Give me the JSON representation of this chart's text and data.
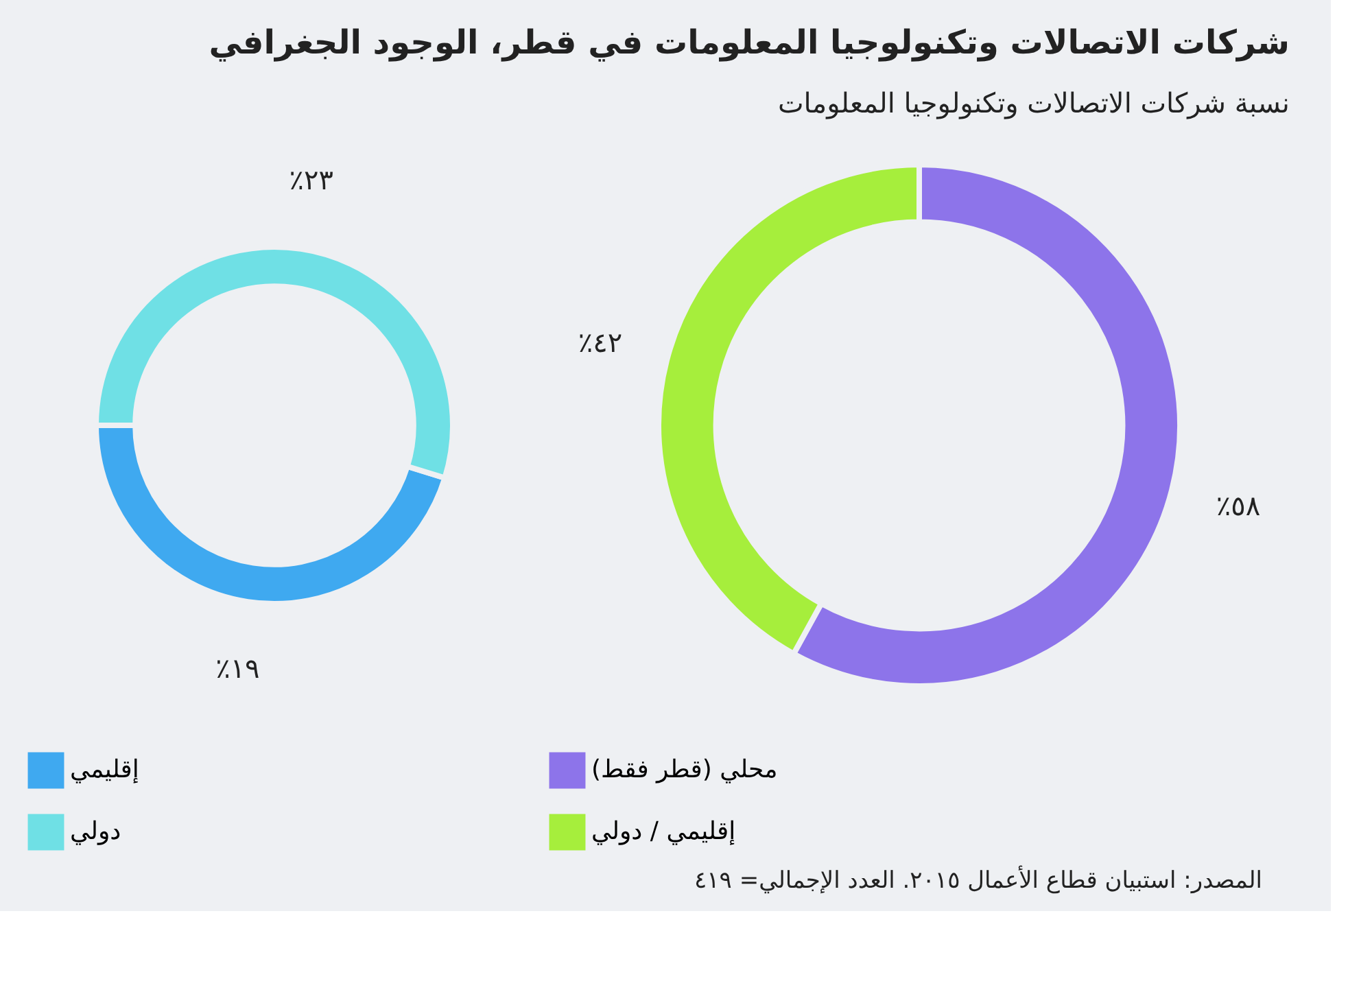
{
  "chart_data": [
    {
      "type": "donut",
      "categories": [
        "إقليمي",
        "دولي"
      ],
      "values": [
        19,
        23
      ],
      "colors": [
        "#3fa9f0",
        "#6fe0e5"
      ],
      "value_labels": [
        "٪١٩",
        "٪٢٣"
      ],
      "legend": "bottom"
    },
    {
      "type": "donut",
      "title": "شركات الاتصالات وتكنولوجيا المعلومات في قطر، الوجود الجغرافي",
      "subtitle": "نسبة شركات الاتصالات وتكنولوجيا المعلومات",
      "categories": [
        "محلي (قطر فقط)",
        "إقليمي / دولي"
      ],
      "values": [
        58,
        42
      ],
      "colors": [
        "#8d74ea",
        "#a6ee3c"
      ],
      "value_labels": [
        "٪٥٨",
        "٪٤٢"
      ],
      "legend": "bottom",
      "annotations": [
        "المصدر: استبيان قطاع الأعمال ٢٠١٥. العدد الإجمالي= ٤١٩"
      ]
    }
  ]
}
